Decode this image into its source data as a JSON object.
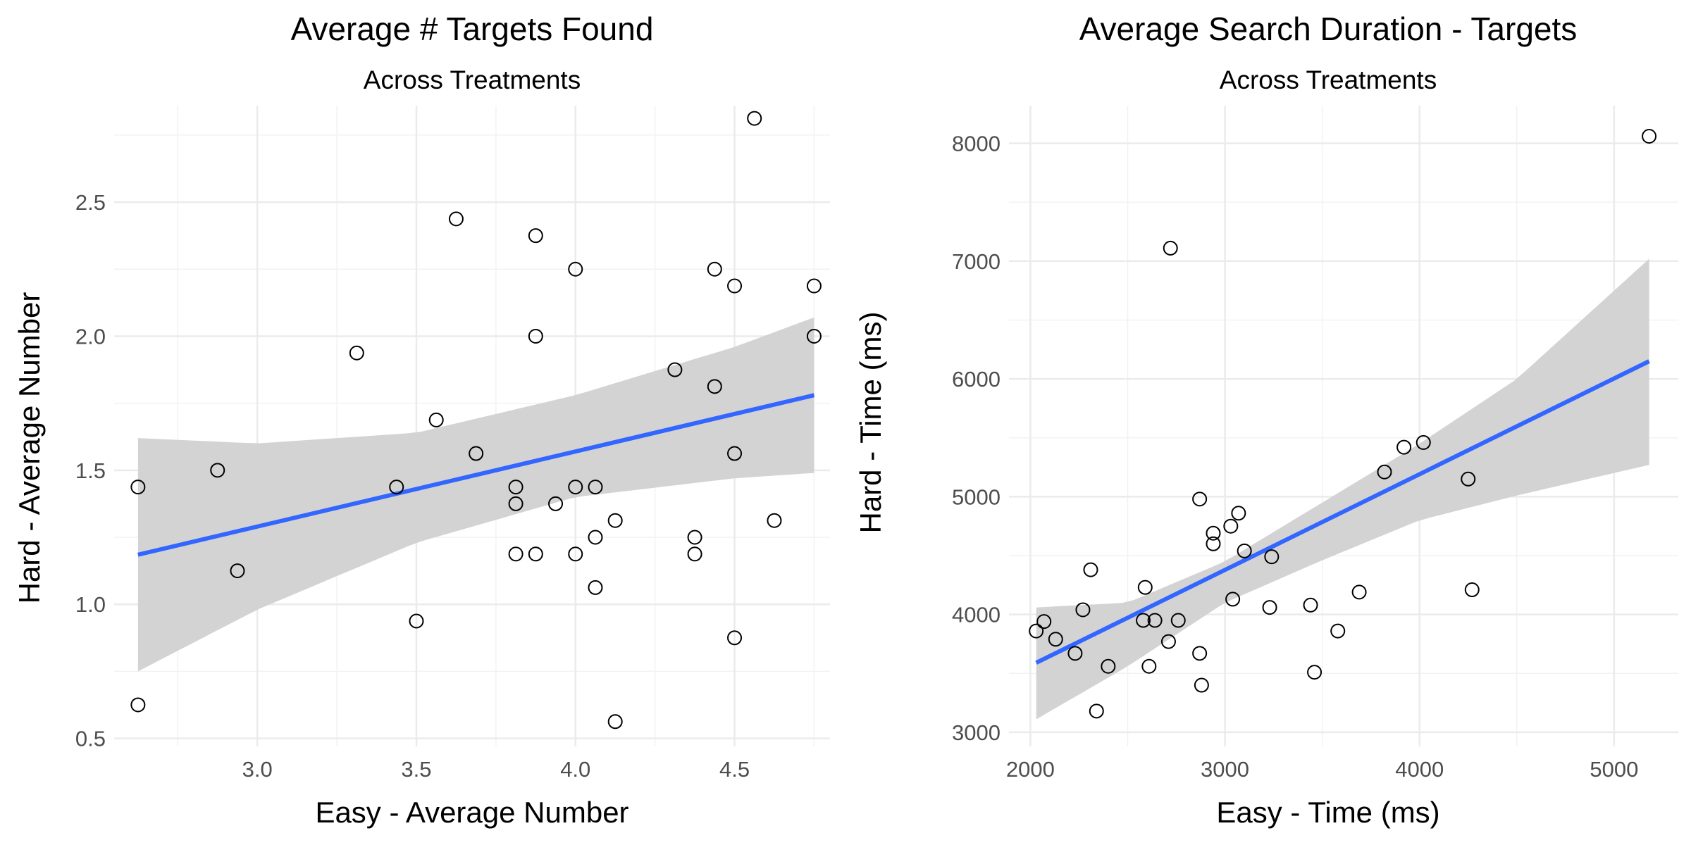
{
  "chart_data": [
    {
      "type": "scatter",
      "title": "Average # Targets Found",
      "subtitle": "Across Treatments",
      "xlabel": "Easy - Average Number",
      "ylabel": "Hard - Average Number",
      "xlim": [
        2.55,
        4.8
      ],
      "ylim": [
        0.47,
        2.86
      ],
      "xticks": [
        "3.0",
        "3.5",
        "4.0",
        "4.5"
      ],
      "yticks": [
        "0.5",
        "1.0",
        "1.5",
        "2.0",
        "2.5"
      ],
      "grid": true,
      "points": [
        {
          "x": 2.625,
          "y": 1.4375
        },
        {
          "x": 2.625,
          "y": 0.625
        },
        {
          "x": 2.875,
          "y": 1.5
        },
        {
          "x": 2.9375,
          "y": 1.125
        },
        {
          "x": 3.3125,
          "y": 1.9375
        },
        {
          "x": 3.4375,
          "y": 1.4375
        },
        {
          "x": 3.5,
          "y": 0.9375
        },
        {
          "x": 3.5625,
          "y": 1.6875
        },
        {
          "x": 3.625,
          "y": 2.4375
        },
        {
          "x": 3.6875,
          "y": 1.5625
        },
        {
          "x": 3.8125,
          "y": 1.4375
        },
        {
          "x": 3.8125,
          "y": 1.375
        },
        {
          "x": 3.8125,
          "y": 1.1875
        },
        {
          "x": 3.875,
          "y": 2.375
        },
        {
          "x": 3.875,
          "y": 2.0
        },
        {
          "x": 3.875,
          "y": 1.1875
        },
        {
          "x": 3.9375,
          "y": 1.375
        },
        {
          "x": 4.0,
          "y": 2.25
        },
        {
          "x": 4.0,
          "y": 1.4375
        },
        {
          "x": 4.0,
          "y": 1.1875
        },
        {
          "x": 4.0625,
          "y": 1.4375
        },
        {
          "x": 4.0625,
          "y": 1.25
        },
        {
          "x": 4.0625,
          "y": 1.0625
        },
        {
          "x": 4.125,
          "y": 1.3125
        },
        {
          "x": 4.125,
          "y": 0.5625
        },
        {
          "x": 4.3125,
          "y": 1.875
        },
        {
          "x": 4.375,
          "y": 1.25
        },
        {
          "x": 4.375,
          "y": 1.1875
        },
        {
          "x": 4.4375,
          "y": 2.25
        },
        {
          "x": 4.4375,
          "y": 1.8125
        },
        {
          "x": 4.5,
          "y": 2.1875
        },
        {
          "x": 4.5,
          "y": 1.5625
        },
        {
          "x": 4.5,
          "y": 0.875
        },
        {
          "x": 4.5625,
          "y": 2.8125
        },
        {
          "x": 4.625,
          "y": 1.3125
        },
        {
          "x": 4.75,
          "y": 2.1875
        },
        {
          "x": 4.75,
          "y": 2.0
        }
      ],
      "fit_line": {
        "x": [
          2.625,
          4.75
        ],
        "y": [
          1.185,
          1.78
        ],
        "color": "#3366ff"
      },
      "confidence_band": {
        "x": [
          2.625,
          3.0,
          3.5,
          4.0,
          4.5,
          4.75
        ],
        "lower": [
          0.75,
          0.98,
          1.23,
          1.4,
          1.47,
          1.49
        ],
        "upper": [
          1.62,
          1.6,
          1.64,
          1.78,
          1.96,
          2.07
        ],
        "color": "#d3d3d3"
      }
    },
    {
      "type": "scatter",
      "title": "Average Search Duration - Targets",
      "subtitle": "Across Treatments",
      "xlabel": "Easy - Time (ms)",
      "ylabel": "Hard - Time (ms)",
      "xlim": [
        1890,
        5330
      ],
      "ylim": [
        2880,
        8320
      ],
      "xticks": [
        "2000",
        "3000",
        "4000",
        "5000"
      ],
      "yticks": [
        "3000",
        "4000",
        "5000",
        "6000",
        "7000",
        "8000"
      ],
      "grid": true,
      "points": [
        {
          "x": 2030,
          "y": 3860
        },
        {
          "x": 2070,
          "y": 3940
        },
        {
          "x": 2130,
          "y": 3790
        },
        {
          "x": 2230,
          "y": 3670
        },
        {
          "x": 2270,
          "y": 4040
        },
        {
          "x": 2310,
          "y": 4380
        },
        {
          "x": 2340,
          "y": 3180
        },
        {
          "x": 2400,
          "y": 3560
        },
        {
          "x": 2580,
          "y": 3950
        },
        {
          "x": 2590,
          "y": 4230
        },
        {
          "x": 2610,
          "y": 3560
        },
        {
          "x": 2640,
          "y": 3950
        },
        {
          "x": 2710,
          "y": 3770
        },
        {
          "x": 2720,
          "y": 7110
        },
        {
          "x": 2760,
          "y": 3950
        },
        {
          "x": 2870,
          "y": 4980
        },
        {
          "x": 2870,
          "y": 3670
        },
        {
          "x": 2880,
          "y": 3400
        },
        {
          "x": 2940,
          "y": 4690
        },
        {
          "x": 2940,
          "y": 4600
        },
        {
          "x": 3030,
          "y": 4750
        },
        {
          "x": 3040,
          "y": 4130
        },
        {
          "x": 3070,
          "y": 4860
        },
        {
          "x": 3100,
          "y": 4540
        },
        {
          "x": 3230,
          "y": 4060
        },
        {
          "x": 3240,
          "y": 4490
        },
        {
          "x": 3440,
          "y": 4080
        },
        {
          "x": 3460,
          "y": 3510
        },
        {
          "x": 3580,
          "y": 3860
        },
        {
          "x": 3690,
          "y": 4190
        },
        {
          "x": 3820,
          "y": 5210
        },
        {
          "x": 3920,
          "y": 5420
        },
        {
          "x": 4020,
          "y": 5460
        },
        {
          "x": 4250,
          "y": 5150
        },
        {
          "x": 4270,
          "y": 4210
        },
        {
          "x": 5180,
          "y": 8060
        }
      ],
      "fit_line": {
        "x": [
          2030,
          5180
        ],
        "y": [
          3590,
          6150
        ],
        "color": "#3366ff"
      },
      "confidence_band": {
        "x": [
          2030,
          2500,
          3000,
          3500,
          4000,
          4500,
          5180
        ],
        "lower": [
          3110,
          3560,
          4100,
          4460,
          4800,
          5010,
          5270
        ],
        "upper": [
          4060,
          4100,
          4450,
          4950,
          5450,
          6000,
          7020
        ],
        "color": "#d3d3d3"
      }
    }
  ]
}
